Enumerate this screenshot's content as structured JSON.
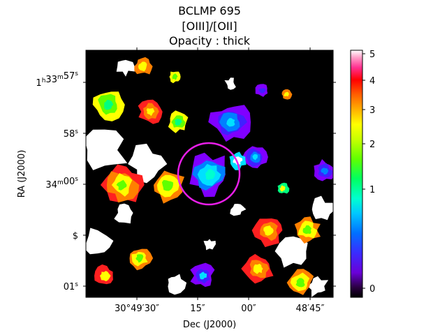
{
  "title_lines": [
    "BCLMP 695",
    "[OIII]/[OII]",
    "Opacity : thick"
  ],
  "chart_data": {
    "type": "heatmap",
    "title": "BCLMP 695\n[OIII]/[OII]\nOpacity : thick",
    "xlabel": "Dec (J2000)",
    "ylabel": "RA (J2000)",
    "xtick_labels": [
      "30°49′30″",
      "15″",
      "00″",
      "48′45″"
    ],
    "ytick_labels": [
      {
        "text": "1h33m57s"
      },
      {
        "text": "58s"
      },
      {
        "text": "34m00s"
      },
      {
        "text": "$"
      },
      {
        "text": "01s"
      }
    ],
    "colorbar": {
      "colormap": "gist_ncar-like (black → purple → blue → cyan → green → yellow → orange → red → pink → white)",
      "ticks": [
        0,
        1,
        2,
        3,
        4,
        5
      ],
      "range": [
        -0.2,
        5.1
      ]
    },
    "annotation": {
      "shape": "circle",
      "color": "#e81ee8"
    },
    "colors": {
      "background_blank": "#000000",
      "masked": "#ffffff",
      "circle": "#e81ee8"
    }
  }
}
